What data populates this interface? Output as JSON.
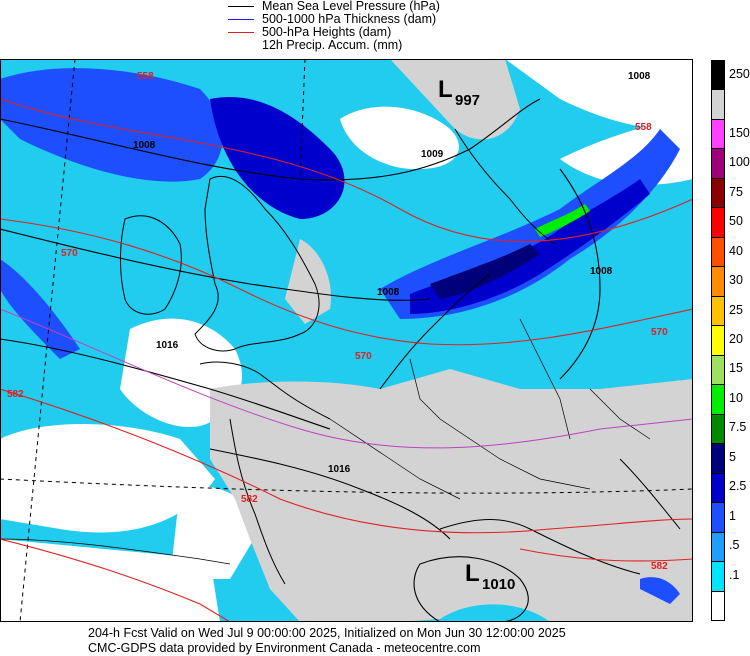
{
  "legend": {
    "items": [
      {
        "label": "Mean Sea Level Pressure (hPa)",
        "color": "#000000"
      },
      {
        "label": "500-1000 hPa Thickness (dam)",
        "color": "#1a1aff"
      },
      {
        "label": "500-hPa Heights (dam)",
        "color": "#e02020"
      },
      {
        "label": "12h Precip. Accum. (mm)",
        "color": ""
      }
    ]
  },
  "colorbar": {
    "levels": [
      {
        "label": "250",
        "color": "#000000"
      },
      {
        "label": "",
        "color": "#d3d3d3"
      },
      {
        "label": "150",
        "color": "#ff40ff"
      },
      {
        "label": "100",
        "color": "#a0007a"
      },
      {
        "label": "75",
        "color": "#8b0000"
      },
      {
        "label": "50",
        "color": "#ff0000"
      },
      {
        "label": "40",
        "color": "#ff5000"
      },
      {
        "label": "30",
        "color": "#ff8c00"
      },
      {
        "label": "25",
        "color": "#ffc000"
      },
      {
        "label": "20",
        "color": "#ffff00"
      },
      {
        "label": "15",
        "color": "#a0e060"
      },
      {
        "label": "10",
        "color": "#00ee00"
      },
      {
        "label": "7.5",
        "color": "#008a00"
      },
      {
        "label": "5",
        "color": "#00007a"
      },
      {
        "label": "2.5",
        "color": "#0000cd"
      },
      {
        "label": "1",
        "color": "#1e4fff"
      },
      {
        "label": ".5",
        "color": "#1e9fff"
      },
      {
        "label": ".1",
        "color": "#00e5ff"
      },
      {
        "label": "",
        "color": "#ffffff"
      }
    ]
  },
  "map": {
    "lows": [
      {
        "letter": "L",
        "value": "997"
      },
      {
        "letter": "L",
        "value": "1010"
      }
    ],
    "contour_labels": {
      "mslp": [
        "1008",
        "1008",
        "1009",
        "1008",
        "1016",
        "1016",
        "1008"
      ],
      "heights": [
        "558",
        "570",
        "582",
        "582",
        "570",
        "558",
        "570",
        "582"
      ]
    }
  },
  "footer": {
    "line1": "204-h Fcst Valid on Wed Jul  9 00:00:00 2025, Initialized on Mon Jun 30 12:00:00 2025",
    "line2": "CMC-GDPS data provided by Environment Canada - meteocentre.com"
  }
}
